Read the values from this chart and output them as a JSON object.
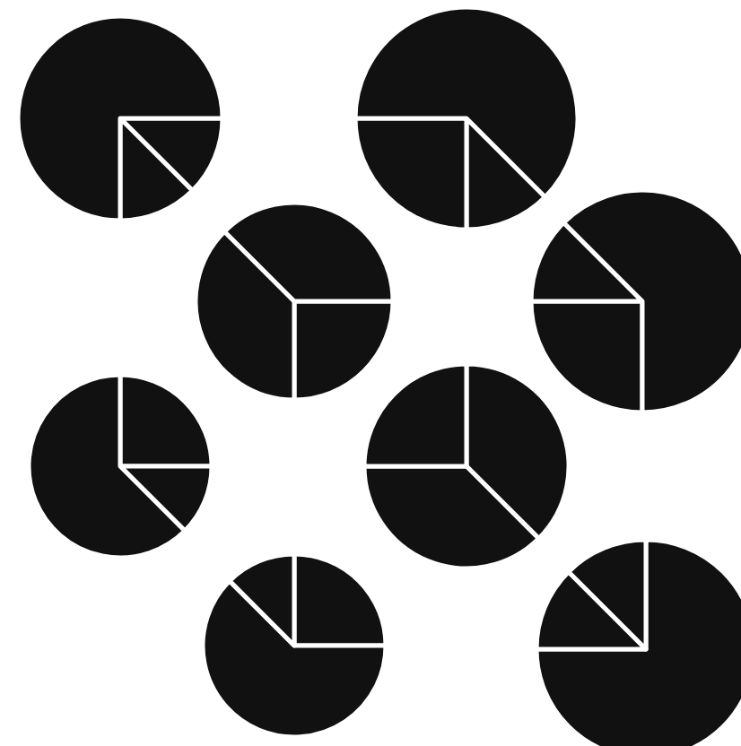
{
  "chart_data": [
    {
      "type": "pie",
      "categories": [
        null,
        null,
        null
      ],
      "values": [
        12.5,
        12.5,
        75
      ],
      "colors": [
        "#111111",
        "#111111",
        "#111111"
      ]
    },
    {
      "type": "pie",
      "categories": [
        null,
        null,
        null
      ],
      "values": [
        12.5,
        25,
        62.5
      ],
      "colors": [
        "#111111",
        "#111111",
        "#111111"
      ]
    },
    {
      "type": "pie",
      "categories": [
        null,
        null,
        null
      ],
      "values": [
        25,
        37.5,
        37.5
      ],
      "colors": [
        "#111111",
        "#111111",
        "#111111"
      ]
    },
    {
      "type": "pie",
      "categories": [
        null,
        null,
        null
      ],
      "values": [
        25,
        12.5,
        62.5
      ],
      "colors": [
        "#111111",
        "#111111",
        "#111111"
      ]
    },
    {
      "type": "pie",
      "categories": [
        null,
        null,
        null
      ],
      "values": [
        25,
        12.5,
        62.5
      ],
      "colors": [
        "#111111",
        "#111111",
        "#111111"
      ]
    },
    {
      "type": "pie",
      "categories": [
        null,
        null,
        null
      ],
      "values": [
        37.5,
        37.5,
        25
      ],
      "colors": [
        "#111111",
        "#111111",
        "#111111"
      ]
    },
    {
      "type": "pie",
      "categories": [
        null,
        null,
        null
      ],
      "values": [
        25,
        62.5,
        12.5
      ],
      "colors": [
        "#111111",
        "#111111",
        "#111111"
      ]
    },
    {
      "type": "pie",
      "categories": [
        null,
        null,
        null
      ],
      "values": [
        75,
        12.5,
        12.5
      ],
      "colors": [
        "#111111",
        "#111111",
        "#111111"
      ]
    }
  ]
}
